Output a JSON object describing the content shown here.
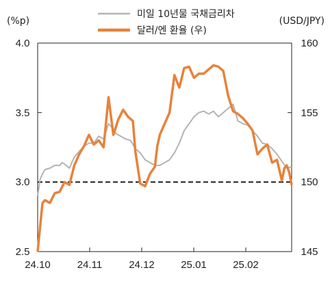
{
  "chart_data": {
    "type": "line",
    "left_axis": {
      "unit_label": "(%p)",
      "min": 2.5,
      "max": 4.0,
      "ticks": [
        "2.5",
        "3.0",
        "3.5",
        "4.0"
      ]
    },
    "right_axis": {
      "unit_label": "(USD/JPY)",
      "min": 145,
      "max": 160,
      "ticks": [
        "145",
        "150",
        "155",
        "160"
      ]
    },
    "x_axis": {
      "min": 0,
      "max": 5.2,
      "tick_labels": [
        "24.10",
        "24.11",
        "24.12",
        "25.01",
        "25.02"
      ]
    },
    "reference_line": {
      "axis": "left",
      "value": 3.0,
      "style": "dashed"
    },
    "legend_position": "top-center",
    "series": [
      {
        "name": "미일 10년물 국채금리차",
        "axis": "left",
        "color": "#b3b3b3",
        "x": [
          0.0,
          0.05,
          0.1,
          0.15,
          0.25,
          0.35,
          0.45,
          0.5,
          0.55,
          0.65,
          0.75,
          0.85,
          0.95,
          1.05,
          1.15,
          1.25,
          1.35,
          1.45,
          1.55,
          1.6,
          1.7,
          1.8,
          1.9,
          2.0,
          2.1,
          2.2,
          2.3,
          2.4,
          2.5,
          2.6,
          2.7,
          2.8,
          2.9,
          3.0,
          3.1,
          3.2,
          3.3,
          3.4,
          3.5,
          3.6,
          3.7,
          3.8,
          3.9,
          4.0,
          4.1,
          4.2,
          4.3,
          4.4,
          4.5,
          4.6,
          4.7,
          4.8,
          4.9,
          5.0,
          5.1,
          5.2
        ],
        "values": [
          2.9,
          3.02,
          3.06,
          3.09,
          3.1,
          3.12,
          3.12,
          3.14,
          3.13,
          3.1,
          3.18,
          3.22,
          3.26,
          3.28,
          3.28,
          3.33,
          3.31,
          3.42,
          3.38,
          3.35,
          3.33,
          3.31,
          3.3,
          3.24,
          3.21,
          3.16,
          3.14,
          3.12,
          3.12,
          3.14,
          3.16,
          3.21,
          3.28,
          3.37,
          3.42,
          3.47,
          3.5,
          3.51,
          3.49,
          3.51,
          3.47,
          3.5,
          3.53,
          3.56,
          3.44,
          3.42,
          3.41,
          3.37,
          3.33,
          3.28,
          3.27,
          3.24,
          3.2,
          3.15,
          3.1,
          3.11
        ]
      },
      {
        "name": "달러/엔 환율 (우)",
        "axis": "right",
        "color": "#e8823a",
        "x": [
          0.0,
          0.05,
          0.1,
          0.15,
          0.25,
          0.35,
          0.45,
          0.55,
          0.65,
          0.75,
          0.85,
          0.95,
          1.05,
          1.15,
          1.25,
          1.35,
          1.45,
          1.55,
          1.65,
          1.75,
          1.85,
          1.95,
          2.0,
          2.1,
          2.2,
          2.3,
          2.4,
          2.45,
          2.5,
          2.6,
          2.7,
          2.8,
          2.9,
          3.0,
          3.1,
          3.2,
          3.3,
          3.4,
          3.5,
          3.6,
          3.7,
          3.8,
          3.9,
          4.0,
          4.1,
          4.2,
          4.3,
          4.4,
          4.5,
          4.6,
          4.7,
          4.8,
          4.9,
          5.0,
          5.05,
          5.1,
          5.15,
          5.2
        ],
        "values": [
          145.0,
          146.8,
          148.5,
          148.7,
          148.5,
          149.2,
          149.3,
          150.0,
          149.8,
          151.2,
          152.0,
          152.6,
          153.4,
          152.7,
          153.0,
          152.5,
          156.1,
          153.4,
          154.5,
          155.2,
          154.7,
          154.4,
          152.2,
          149.9,
          149.7,
          150.6,
          151.1,
          152.6,
          153.4,
          154.2,
          155.0,
          157.7,
          156.8,
          158.2,
          158.3,
          157.5,
          157.8,
          157.8,
          158.1,
          158.4,
          158.3,
          158.0,
          156.2,
          155.1,
          154.9,
          154.6,
          154.2,
          153.7,
          152.0,
          152.4,
          152.7,
          151.4,
          151.6,
          150.1,
          151.0,
          151.2,
          150.7,
          149.8
        ]
      }
    ]
  }
}
